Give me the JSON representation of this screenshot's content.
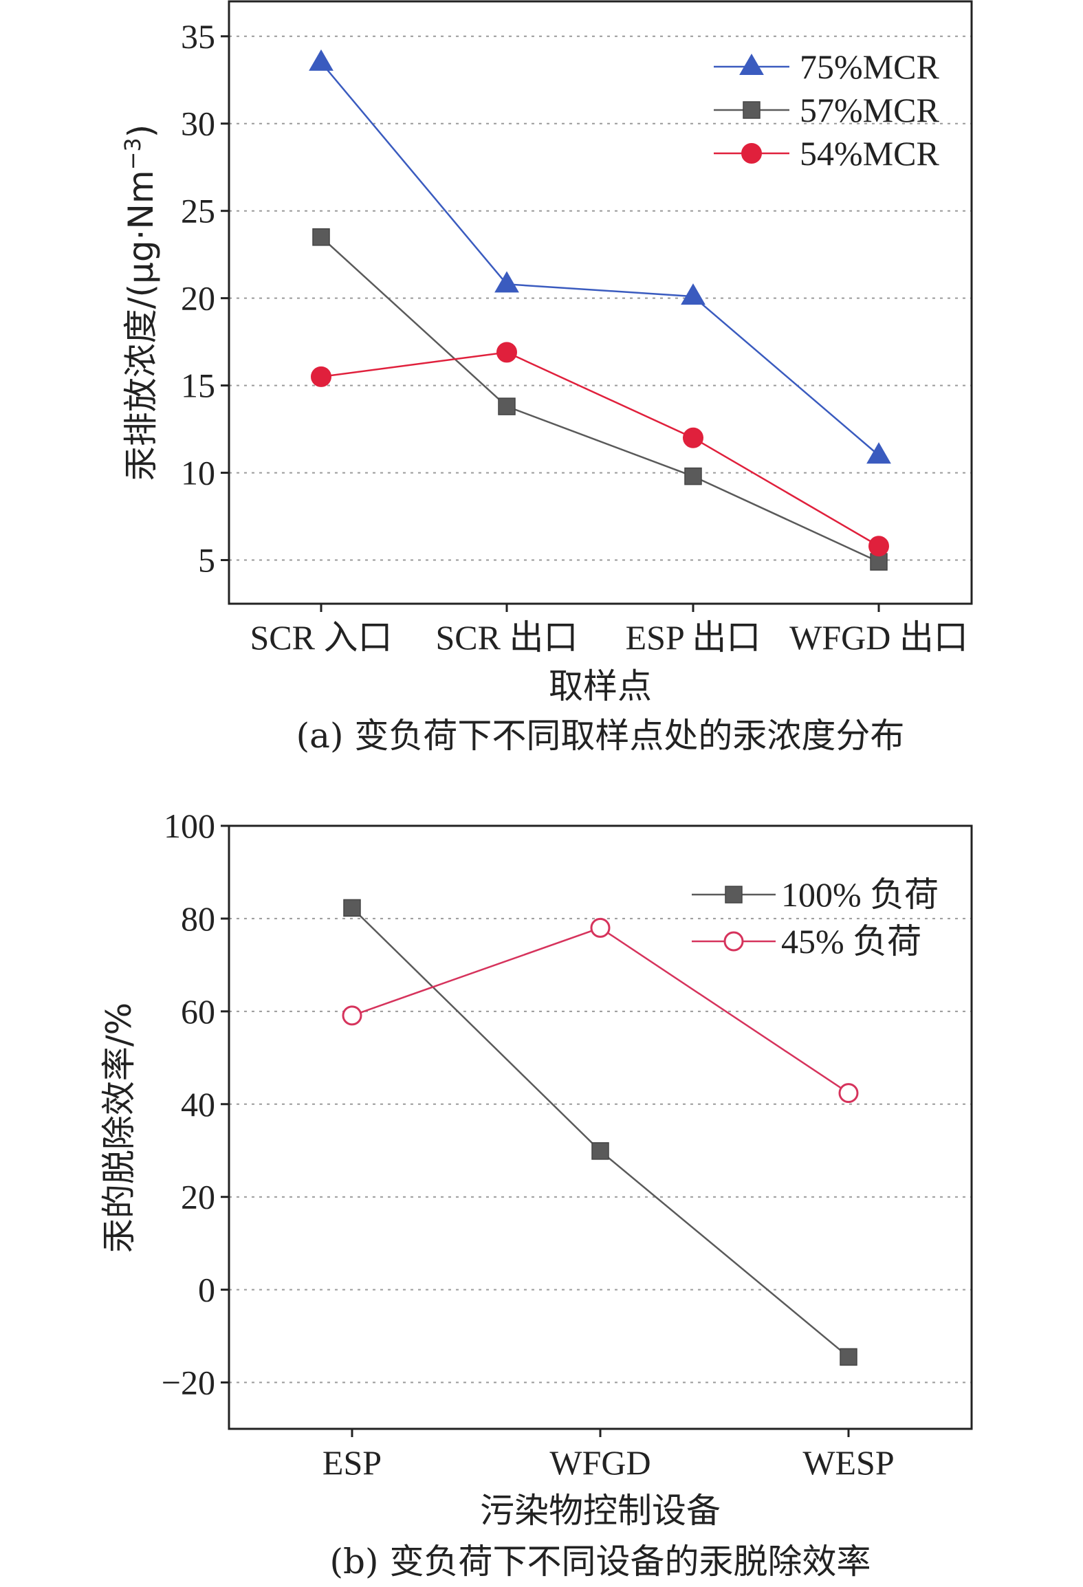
{
  "chart_data": [
    {
      "type": "line",
      "title": "",
      "caption": "(a) 变负荷下不同取样点处的汞浓度分布",
      "xlabel": "取样点",
      "ylabel_main": "汞排放浓度/(μg·Nm",
      "ylabel_sup": "−3",
      "ylabel_close": ")",
      "ylim": [
        2.5,
        37
      ],
      "yticks": [
        "5",
        "10",
        "15",
        "20",
        "25",
        "30",
        "35"
      ],
      "categories": [
        "SCR 入口",
        "SCR 出口",
        "ESP 出口",
        "WFGD 出口"
      ],
      "grid": true,
      "legend_position": "top-right",
      "series": [
        {
          "name": "75%MCR",
          "values": [
            33.5,
            20.8,
            20.1,
            11.0
          ],
          "color": "#3a5bbf",
          "marker": "triangle"
        },
        {
          "name": "57%MCR",
          "values": [
            23.5,
            13.8,
            9.8,
            4.9
          ],
          "color": "#5a5a5a",
          "marker": "square"
        },
        {
          "name": "54%MCR",
          "values": [
            15.5,
            16.9,
            12.0,
            5.8
          ],
          "color": "#e0203c",
          "marker": "circle"
        }
      ]
    },
    {
      "type": "line",
      "title": "",
      "caption": "(b) 变负荷下不同设备的汞脱除效率",
      "xlabel": "污染物控制设备",
      "ylabel": "汞的脱除效率/%",
      "ylim": [
        -30,
        100
      ],
      "yticks": [
        "−20",
        "0",
        "20",
        "40",
        "60",
        "80",
        "100"
      ],
      "categories": [
        "ESP",
        "WFGD",
        "WESP"
      ],
      "grid": true,
      "legend_position": "top-right",
      "series": [
        {
          "name": "100% 负荷",
          "values": [
            82.3,
            29.9,
            -14.5
          ],
          "color": "#5a5a5a",
          "marker": "square"
        },
        {
          "name": "45% 负荷",
          "values": [
            59.1,
            78.0,
            42.4
          ],
          "color": "#d6335c",
          "marker": "open-circle"
        }
      ]
    }
  ]
}
